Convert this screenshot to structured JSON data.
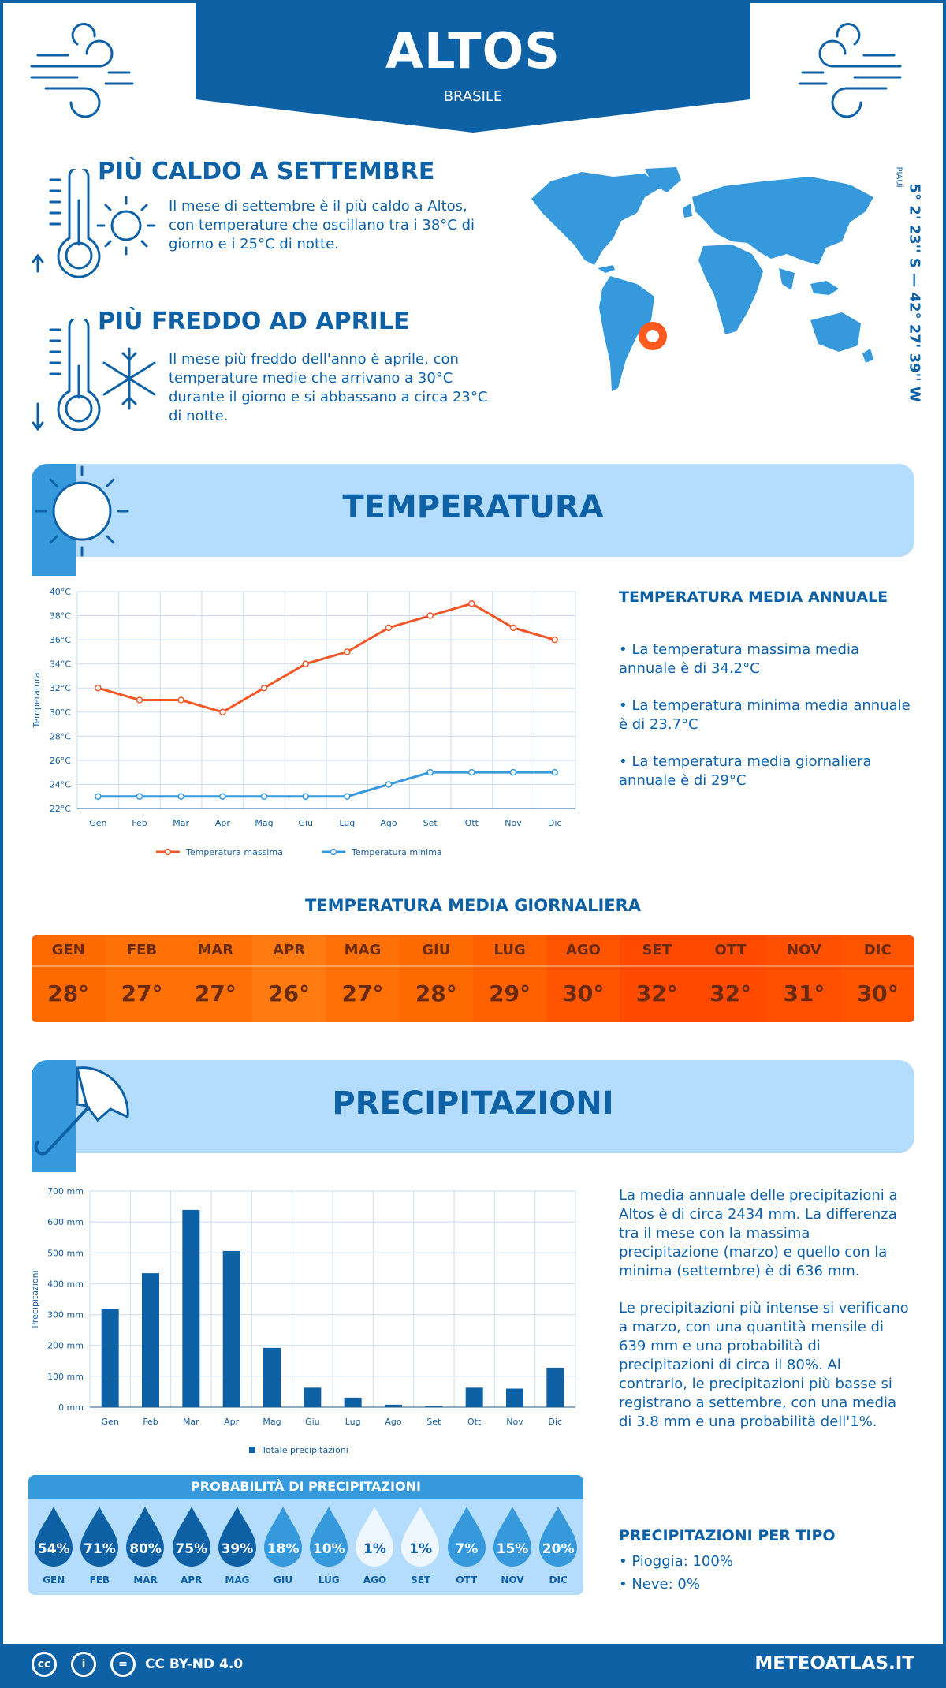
{
  "header": {
    "city": "ALTOS",
    "country": "BRASILE",
    "coordinates": "5° 2' 23'' S — 42° 27' 39'' W",
    "region": "PIAUÍ"
  },
  "warmest": {
    "title": "PIÙ CALDO A SETTEMBRE",
    "text_lines": [
      "Il mese di settembre è il più caldo a Altos,",
      "con temperature che oscillano tra i 38°C di",
      "giorno e i 25°C di notte."
    ]
  },
  "coldest": {
    "title": "PIÙ FREDDO AD APRILE",
    "text_lines": [
      "Il mese più freddo dell'anno è aprile, con",
      "temperature medie che arrivano a 30°C",
      "durante il giorno e si abbassano a circa 23°C",
      "di notte."
    ]
  },
  "temperature": {
    "band_title": "TEMPERATURA",
    "annual_title": "TEMPERATURA MEDIA ANNUALE",
    "bullets": [
      [
        "• La temperatura massima media",
        "annuale è di 34.2°C"
      ],
      [
        "• La temperatura minima media annuale",
        "è di 23.7°C"
      ],
      [
        "• La temperatura media giornaliera",
        "annuale è di 29°C"
      ]
    ],
    "daily_title": "TEMPERATURA MEDIA GIORNALIERA",
    "daily": [
      {
        "month": "GEN",
        "value": "28°",
        "color": "#ff6a00"
      },
      {
        "month": "FEB",
        "value": "27°",
        "color": "#ff7106"
      },
      {
        "month": "MAR",
        "value": "27°",
        "color": "#ff7106"
      },
      {
        "month": "APR",
        "value": "26°",
        "color": "#ff7a10"
      },
      {
        "month": "MAG",
        "value": "27°",
        "color": "#ff7106"
      },
      {
        "month": "GIU",
        "value": "28°",
        "color": "#ff6a00"
      },
      {
        "month": "LUG",
        "value": "29°",
        "color": "#ff6000"
      },
      {
        "month": "AGO",
        "value": "30°",
        "color": "#ff5500"
      },
      {
        "month": "SET",
        "value": "32°",
        "color": "#ff4a00"
      },
      {
        "month": "OTT",
        "value": "32°",
        "color": "#ff4a00"
      },
      {
        "month": "NOV",
        "value": "31°",
        "color": "#ff5000"
      },
      {
        "month": "DIC",
        "value": "30°",
        "color": "#ff5500"
      }
    ]
  },
  "precipitation": {
    "band_title": "PRECIPITAZIONI",
    "para1": [
      "La media annuale delle precipitazioni a",
      "Altos è di circa 2434 mm. La differenza",
      "tra il mese con la massima",
      "precipitazione (marzo) e quello con la",
      "minima (settembre) è di 636 mm."
    ],
    "para2": [
      "Le precipitazioni più intense si verificano",
      "a marzo, con una quantità mensile di",
      "639 mm e una probabilità di",
      "precipitazioni di circa il 80%. Al",
      "contrario, le precipitazioni più basse si",
      "registrano a settembre, con una media",
      "di 3.8 mm e una probabilità dell'1%."
    ],
    "prob_title": "PROBABILITÀ DI PRECIPITAZIONI",
    "prob": [
      {
        "month": "GEN",
        "value": "54%",
        "color": "#0f61a6"
      },
      {
        "month": "FEB",
        "value": "71%",
        "color": "#0f61a6"
      },
      {
        "month": "MAR",
        "value": "80%",
        "color": "#0f61a6"
      },
      {
        "month": "APR",
        "value": "75%",
        "color": "#0f61a6"
      },
      {
        "month": "MAG",
        "value": "39%",
        "color": "#0f61a6"
      },
      {
        "month": "GIU",
        "value": "18%",
        "color": "#3699db"
      },
      {
        "month": "LUG",
        "value": "10%",
        "color": "#3699db"
      },
      {
        "month": "AGO",
        "value": "1%",
        "color": "#eef7ff"
      },
      {
        "month": "SET",
        "value": "1%",
        "color": "#eef7ff"
      },
      {
        "month": "OTT",
        "value": "7%",
        "color": "#3699db"
      },
      {
        "month": "NOV",
        "value": "15%",
        "color": "#3699db"
      },
      {
        "month": "DIC",
        "value": "20%",
        "color": "#3699db"
      }
    ],
    "type_title": "PRECIPITAZIONI PER TIPO",
    "types": [
      "• Pioggia: 100%",
      "• Neve: 0%"
    ]
  },
  "footer": {
    "license": "CC BY-ND 4.0",
    "site": "METEOATLAS.IT"
  },
  "chart_data": [
    {
      "type": "line",
      "title": "",
      "ylabel": "Temperatura",
      "categories": [
        "Gen",
        "Feb",
        "Mar",
        "Apr",
        "Mag",
        "Giu",
        "Lug",
        "Ago",
        "Set",
        "Ott",
        "Nov",
        "Dic"
      ],
      "y_ticks": [
        "22°C",
        "24°C",
        "26°C",
        "28°C",
        "30°C",
        "32°C",
        "34°C",
        "36°C",
        "38°C",
        "40°C"
      ],
      "ylim": [
        22,
        40
      ],
      "series": [
        {
          "name": "Temperatura massima",
          "color": "#f0582a",
          "values": [
            32,
            31,
            31,
            30,
            32,
            34,
            35,
            37,
            38,
            39,
            37,
            36
          ]
        },
        {
          "name": "Temperatura minima",
          "color": "#3699db",
          "values": [
            23,
            23,
            23,
            23,
            23,
            23,
            23,
            24,
            25,
            25,
            25,
            25
          ]
        }
      ],
      "grid": true,
      "legend": "bottom"
    },
    {
      "type": "bar",
      "title": "",
      "ylabel": "Precipitazioni",
      "categories": [
        "Gen",
        "Feb",
        "Mar",
        "Apr",
        "Mag",
        "Giu",
        "Lug",
        "Ago",
        "Set",
        "Ott",
        "Nov",
        "Dic"
      ],
      "y_ticks": [
        "0 mm",
        "100 mm",
        "200 mm",
        "300 mm",
        "400 mm",
        "500 mm",
        "600 mm",
        "700 mm"
      ],
      "ylim": [
        0,
        700
      ],
      "series": [
        {
          "name": "Totale precipitazioni",
          "color": "#0f61a6",
          "values": [
            317,
            434,
            639,
            506,
            192,
            63,
            31,
            8,
            3.8,
            63,
            60,
            128
          ]
        }
      ],
      "grid": true,
      "legend": "bottom"
    }
  ]
}
